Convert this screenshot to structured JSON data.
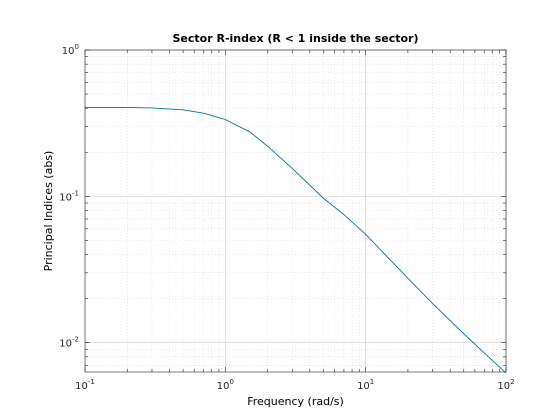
{
  "chart_data": {
    "type": "line",
    "title": "Sector R-index (R < 1 inside the sector)",
    "xlabel": "Frequency (rad/s)",
    "ylabel": "Principal Indices (abs)",
    "xscale": "log",
    "yscale": "log",
    "xlim": [
      0.1,
      100
    ],
    "ylim": [
      0.0063,
      1
    ],
    "grid": true,
    "minor_grid": true,
    "x_ticks": [
      {
        "base": "10",
        "exp": "-1",
        "value": 0.1
      },
      {
        "base": "10",
        "exp": "0",
        "value": 1
      },
      {
        "base": "10",
        "exp": "1",
        "value": 10
      },
      {
        "base": "10",
        "exp": "2",
        "value": 100
      }
    ],
    "y_ticks": [
      {
        "base": "10",
        "exp": "0",
        "value": 1
      },
      {
        "base": "10",
        "exp": "-1",
        "value": 0.1
      },
      {
        "base": "10",
        "exp": "-2",
        "value": 0.01
      }
    ],
    "series": [
      {
        "color": "#0072bd",
        "x": [
          0.1,
          0.2,
          0.3,
          0.5,
          0.7,
          1.0,
          1.5,
          2.0,
          3.0,
          5.0,
          7.0,
          10.0,
          20.0,
          30.0,
          50.0,
          70.0,
          100.0
        ],
        "y": [
          0.405,
          0.405,
          0.402,
          0.39,
          0.37,
          0.335,
          0.275,
          0.22,
          0.155,
          0.097,
          0.075,
          0.055,
          0.0275,
          0.0185,
          0.0115,
          0.0085,
          0.0062
        ]
      }
    ]
  }
}
